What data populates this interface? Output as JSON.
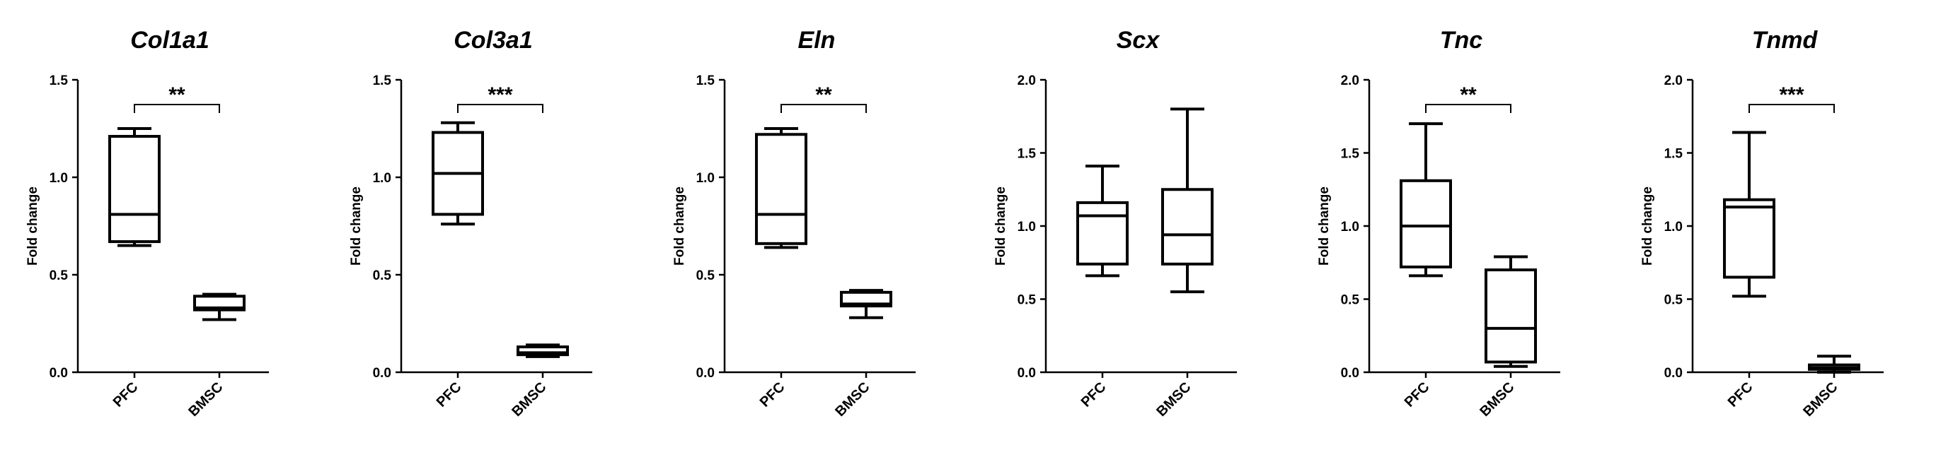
{
  "chart_data": [
    {
      "type": "box",
      "title": "Col1a1",
      "ylabel": "Fold change",
      "ylim": [
        0,
        1.5
      ],
      "yticks": [
        "0.0",
        "0.5",
        "1.0",
        "1.5"
      ],
      "categories": [
        "PFC",
        "BMSC"
      ],
      "boxes": [
        {
          "name": "PFC",
          "min": 0.65,
          "q1": 0.67,
          "median": 0.81,
          "q3": 1.21,
          "max": 1.25
        },
        {
          "name": "BMSC",
          "min": 0.27,
          "q1": 0.32,
          "median": 0.33,
          "q3": 0.39,
          "max": 0.4
        }
      ],
      "significance": {
        "pair": [
          "PFC",
          "BMSC"
        ],
        "label": "**"
      }
    },
    {
      "type": "box",
      "title": "Col3a1",
      "ylabel": "Fold change",
      "ylim": [
        0,
        1.5
      ],
      "yticks": [
        "0.0",
        "0.5",
        "1.0",
        "1.5"
      ],
      "categories": [
        "PFC",
        "BMSC"
      ],
      "boxes": [
        {
          "name": "PFC",
          "min": 0.76,
          "q1": 0.81,
          "median": 1.02,
          "q3": 1.23,
          "max": 1.28
        },
        {
          "name": "BMSC",
          "min": 0.08,
          "q1": 0.09,
          "median": 0.1,
          "q3": 0.13,
          "max": 0.14
        }
      ],
      "significance": {
        "pair": [
          "PFC",
          "BMSC"
        ],
        "label": "***"
      }
    },
    {
      "type": "box",
      "title": "Eln",
      "ylabel": "Fold change",
      "ylim": [
        0,
        1.5
      ],
      "yticks": [
        "0.0",
        "0.5",
        "1.0",
        "1.5"
      ],
      "categories": [
        "PFC",
        "BMSC"
      ],
      "boxes": [
        {
          "name": "PFC",
          "min": 0.64,
          "q1": 0.66,
          "median": 0.81,
          "q3": 1.22,
          "max": 1.25
        },
        {
          "name": "BMSC",
          "min": 0.28,
          "q1": 0.34,
          "median": 0.35,
          "q3": 0.41,
          "max": 0.42
        }
      ],
      "significance": {
        "pair": [
          "PFC",
          "BMSC"
        ],
        "label": "**"
      }
    },
    {
      "type": "box",
      "title": "Scx",
      "ylabel": "Fold change",
      "ylim": [
        0,
        2.0
      ],
      "yticks": [
        "0.0",
        "0.5",
        "1.0",
        "1.5",
        "2.0"
      ],
      "categories": [
        "PFC",
        "BMSC"
      ],
      "boxes": [
        {
          "name": "PFC",
          "min": 0.66,
          "q1": 0.74,
          "median": 1.07,
          "q3": 1.16,
          "max": 1.41
        },
        {
          "name": "BMSC",
          "min": 0.55,
          "q1": 0.74,
          "median": 0.94,
          "q3": 1.25,
          "max": 1.8
        }
      ],
      "significance": null
    },
    {
      "type": "box",
      "title": "Tnc",
      "ylabel": "Fold change",
      "ylim": [
        0,
        2.0
      ],
      "yticks": [
        "0.0",
        "0.5",
        "1.0",
        "1.5",
        "2.0"
      ],
      "categories": [
        "PFC",
        "BMSC"
      ],
      "boxes": [
        {
          "name": "PFC",
          "min": 0.66,
          "q1": 0.72,
          "median": 1.0,
          "q3": 1.31,
          "max": 1.7
        },
        {
          "name": "BMSC",
          "min": 0.04,
          "q1": 0.07,
          "median": 0.3,
          "q3": 0.7,
          "max": 0.79
        }
      ],
      "significance": {
        "pair": [
          "PFC",
          "BMSC"
        ],
        "label": "**"
      }
    },
    {
      "type": "box",
      "title": "Tnmd",
      "ylabel": "Fold change",
      "ylim": [
        0,
        2.0
      ],
      "yticks": [
        "0.0",
        "0.5",
        "1.0",
        "1.5",
        "2.0"
      ],
      "categories": [
        "PFC",
        "BMSC"
      ],
      "boxes": [
        {
          "name": "PFC",
          "min": 0.52,
          "q1": 0.65,
          "median": 1.13,
          "q3": 1.18,
          "max": 1.64
        },
        {
          "name": "BMSC",
          "min": 0.0,
          "q1": 0.02,
          "median": 0.03,
          "q3": 0.05,
          "max": 0.11
        }
      ],
      "significance": {
        "pair": [
          "PFC",
          "BMSC"
        ],
        "label": "***"
      }
    }
  ]
}
